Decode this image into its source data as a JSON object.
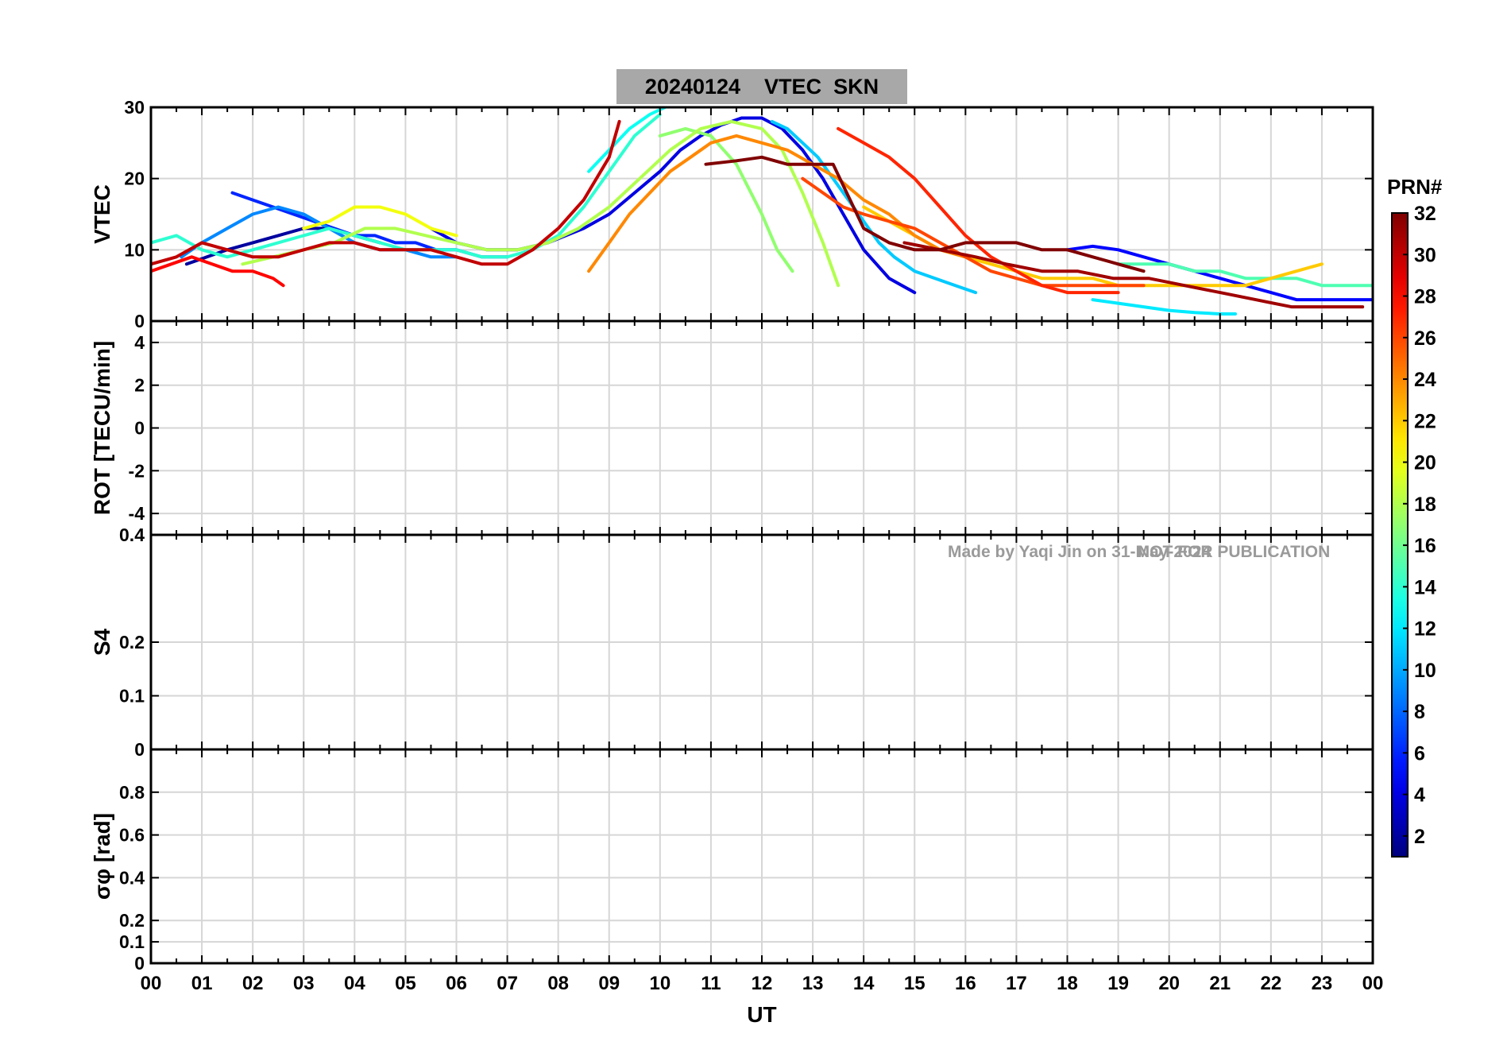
{
  "chart_data": {
    "type": "line",
    "title": "20240124    VTEC  SKN",
    "watermark_left": "Made by Yaqi Jin on 31-May-2024",
    "watermark_right": "NOT FOR PUBLICATION",
    "xlabel": "UT",
    "xlim": [
      0,
      24
    ],
    "xticks": [
      0,
      1,
      2,
      3,
      4,
      5,
      6,
      7,
      8,
      9,
      10,
      11,
      12,
      13,
      14,
      15,
      16,
      17,
      18,
      19,
      20,
      21,
      22,
      23,
      24
    ],
    "xticklabels": [
      "00",
      "01",
      "02",
      "03",
      "04",
      "05",
      "06",
      "07",
      "08",
      "09",
      "10",
      "11",
      "12",
      "13",
      "14",
      "15",
      "16",
      "17",
      "18",
      "19",
      "20",
      "21",
      "22",
      "23",
      "00"
    ],
    "colorbar": {
      "label": "PRN#",
      "clim": [
        1,
        32
      ],
      "ticks": [
        2,
        4,
        6,
        8,
        10,
        12,
        14,
        16,
        18,
        20,
        22,
        24,
        26,
        28,
        30,
        32
      ],
      "ticklabels": [
        "2",
        "4",
        "6",
        "8",
        "10",
        "12",
        "14",
        "16",
        "18",
        "20",
        "22",
        "24",
        "26",
        "28",
        "30",
        "32"
      ],
      "colormap": "jet"
    },
    "panels": [
      {
        "id": "vtec",
        "ylabel": "VTEC",
        "ylim": [
          0,
          30
        ],
        "yticks": [
          0,
          10,
          20,
          30
        ],
        "yticklabels": [
          "0",
          "10",
          "20",
          "30"
        ],
        "series": [
          {
            "prn": 2,
            "x": [
              0.7,
              1.1,
              1.5,
              2.0,
              2.5,
              3.0,
              3.5,
              4.0,
              4.5
            ],
            "y": [
              8,
              9,
              10,
              11,
              12,
              13,
              13,
              12,
              11
            ]
          },
          {
            "prn": 4,
            "x": [
              5.5,
              6.0,
              6.6,
              7.2,
              7.8,
              8.5,
              9.0,
              9.5,
              10.0,
              10.4,
              10.8,
              11.2,
              11.6,
              12.0,
              12.4,
              12.8,
              13.2,
              13.6,
              14.0,
              14.5,
              15.0
            ],
            "y": [
              13,
              11,
              10,
              10,
              11,
              13,
              15,
              18,
              21,
              24,
              26,
              27.5,
              28.5,
              28.5,
              27,
              24,
              20,
              15,
              10,
              6,
              4
            ]
          },
          {
            "prn": 6,
            "x": [
              1.6,
              2.0,
              2.4,
              2.8,
              3.2,
              3.6,
              4.0,
              4.4,
              4.8,
              5.2,
              5.6,
              6.0,
              6.5,
              7.0
            ],
            "y": [
              18,
              17,
              16,
              15,
              14,
              13,
              12,
              12,
              11,
              11,
              10,
              10,
              9,
              9
            ]
          },
          {
            "prn": 5,
            "x": [
              18.0,
              18.5,
              19.0,
              19.5,
              20.0,
              20.5,
              21.0,
              21.5,
              22.0,
              22.5,
              23.0,
              23.5,
              24.0
            ],
            "y": [
              10,
              10.5,
              10,
              9,
              8,
              7,
              6,
              5,
              4,
              3,
              3,
              3,
              3
            ]
          },
          {
            "prn": 9,
            "x": [
              0.6,
              1.0,
              1.5,
              2.0,
              2.5,
              3.0,
              3.5,
              4.0,
              4.5,
              5.0,
              5.5,
              6.0
            ],
            "y": [
              9,
              11,
              13,
              15,
              16,
              15,
              13,
              11,
              10,
              10,
              9,
              9
            ]
          },
          {
            "prn": 11,
            "x": [
              12.2,
              12.5,
              12.8,
              13.1,
              13.4,
              13.7,
              14.0,
              14.3,
              14.6,
              15.0,
              15.4,
              15.8,
              16.2
            ],
            "y": [
              28,
              27,
              25,
              23,
              20,
              17,
              14,
              11,
              9,
              7,
              6,
              5,
              4
            ]
          },
          {
            "prn": 12,
            "x": [
              18.5,
              19.0,
              19.5,
              20.0,
              20.5,
              21.0,
              21.3
            ],
            "y": [
              3,
              2.5,
              2,
              1.5,
              1.2,
              1,
              1
            ]
          },
          {
            "prn": 13,
            "x": [
              8.6,
              9.0,
              9.4,
              9.8,
              10.1
            ],
            "y": [
              21,
              24,
              27,
              29,
              30
            ]
          },
          {
            "prn": 14,
            "x": [
              0.0,
              0.5,
              1.0,
              1.5,
              2.0,
              2.5,
              3.0,
              3.5,
              4.0,
              4.5,
              5.0,
              5.5,
              6.0,
              6.5,
              7.0,
              7.5,
              8.0,
              8.5,
              9.0,
              9.5,
              10.0
            ],
            "y": [
              11,
              12,
              10,
              9,
              10,
              11,
              12,
              13,
              12,
              11,
              10,
              10,
              10,
              9,
              9,
              10,
              12,
              16,
              21,
              26,
              29
            ]
          },
          {
            "prn": 15,
            "x": [
              19.0,
              19.5,
              20.0,
              20.5,
              21.0,
              21.5,
              22.0,
              22.5,
              23.0,
              23.5,
              24.0
            ],
            "y": [
              8,
              8,
              8,
              7,
              7,
              6,
              6,
              6,
              5,
              5,
              5
            ]
          },
          {
            "prn": 17,
            "x": [
              10.0,
              10.5,
              11.0,
              11.5,
              12.0,
              12.3,
              12.6
            ],
            "y": [
              26,
              27,
              26,
              22,
              15,
              10,
              7
            ]
          },
          {
            "prn": 18,
            "x": [
              1.8,
              2.4,
              3.0,
              3.6,
              4.2,
              4.8,
              5.4,
              6.0,
              6.6,
              7.2,
              7.8,
              8.4,
              9.0,
              9.6,
              10.2,
              10.8,
              11.4,
              12.0,
              12.4,
              12.8,
              13.2,
              13.5
            ],
            "y": [
              8,
              9,
              10,
              11,
              13,
              13,
              12,
              11,
              10,
              10,
              11,
              13,
              16,
              20,
              24,
              27,
              28,
              27,
              24,
              18,
              11,
              5
            ]
          },
          {
            "prn": 20,
            "x": [
              3.0,
              3.5,
              4.0,
              4.5,
              5.0,
              5.5,
              6.0
            ],
            "y": [
              13,
              14,
              16,
              16,
              15,
              13,
              12
            ]
          },
          {
            "prn": 22,
            "x": [
              14.0,
              14.5,
              15.0,
              15.5,
              16.0,
              16.5,
              17.0,
              17.5,
              18.0,
              18.5,
              19.0,
              19.5,
              20.0,
              20.5,
              21.0,
              21.5,
              22.0,
              22.5,
              23.0
            ],
            "y": [
              16,
              14,
              12,
              10,
              9,
              8,
              7,
              6,
              6,
              6,
              5,
              5,
              5,
              5,
              5,
              5,
              6,
              7,
              8
            ]
          },
          {
            "prn": 24,
            "x": [
              8.6,
              9.0,
              9.4,
              9.8,
              10.2,
              10.6,
              11.0,
              11.5,
              12.0,
              12.5,
              13.0,
              13.5,
              14.0,
              14.5,
              15.0,
              15.5,
              16.0
            ],
            "y": [
              7,
              11,
              15,
              18,
              21,
              23,
              25,
              26,
              25,
              24,
              22,
              20,
              17,
              15,
              12,
              10,
              9
            ]
          },
          {
            "prn": 26,
            "x": [
              12.8,
              13.2,
              13.6,
              14.0,
              14.5,
              15.0,
              15.5,
              16.0,
              16.5,
              17.0,
              17.5,
              18.0,
              18.5,
              19.0,
              19.5
            ],
            "y": [
              20,
              18,
              16,
              15,
              14,
              13,
              11,
              9,
              7,
              6,
              5,
              5,
              5,
              5,
              5
            ]
          },
          {
            "prn": 28,
            "x": [
              0.0,
              0.4,
              0.8,
              1.2,
              1.6,
              2.0,
              2.4,
              2.6
            ],
            "y": [
              7,
              8,
              9,
              8,
              7,
              7,
              6,
              5
            ]
          },
          {
            "prn": 27,
            "x": [
              13.5,
              14.0,
              14.5,
              15.0,
              15.5,
              16.0,
              16.5,
              17.0,
              17.5,
              18.0,
              18.5,
              19.0
            ],
            "y": [
              27,
              25,
              23,
              20,
              16,
              12,
              9,
              7,
              5,
              4,
              4,
              4
            ]
          },
          {
            "prn": 30,
            "x": [
              0.0,
              0.5,
              1.0,
              1.5,
              2.0,
              2.5,
              3.0,
              3.5,
              4.0,
              4.5,
              5.0,
              5.5,
              6.0,
              6.5,
              7.0,
              7.5,
              8.0,
              8.5,
              9.0,
              9.2
            ],
            "y": [
              8,
              9,
              11,
              10,
              9,
              9,
              10,
              11,
              11,
              10,
              10,
              10,
              9,
              8,
              8,
              10,
              13,
              17,
              23,
              28
            ]
          },
          {
            "prn": 31,
            "x": [
              14.8,
              15.5,
              16.2,
              16.8,
              17.5,
              18.2,
              18.9,
              19.6,
              20.3,
              21.0,
              21.7,
              22.4,
              23.1,
              23.8
            ],
            "y": [
              11,
              10,
              9,
              8,
              7,
              7,
              6,
              6,
              5,
              4,
              3,
              2,
              2,
              2
            ]
          },
          {
            "prn": 32,
            "x": [
              10.9,
              11.5,
              12.0,
              12.5,
              13.0,
              13.4,
              14.0,
              14.5,
              15.0,
              15.5,
              16.0,
              16.5,
              17.0,
              17.5,
              18.0,
              18.5,
              19.0,
              19.5
            ],
            "y": [
              22,
              22.5,
              23,
              22,
              22,
              22,
              13,
              11,
              10,
              10,
              11,
              11,
              11,
              10,
              10,
              9,
              8,
              7
            ]
          }
        ]
      },
      {
        "id": "rot",
        "ylabel": "ROT [TECU/min]",
        "ylim": [
          -5,
          5
        ],
        "yticks": [
          -4,
          -2,
          0,
          2,
          4
        ],
        "yticklabels": [
          "-4",
          "-2",
          "0",
          "2",
          "4"
        ]
      },
      {
        "id": "s4",
        "ylabel": "S4",
        "ylim": [
          0,
          0.4
        ],
        "yticks": [
          0,
          0.1,
          0.2,
          0.4
        ],
        "yticklabels": [
          "0",
          "0.1",
          "0.2",
          "0.4"
        ]
      },
      {
        "id": "sigma",
        "ylabel": "σφ [rad]",
        "ylim": [
          0,
          1
        ],
        "yticks": [
          0,
          0.1,
          0.2,
          0.4,
          0.6,
          0.8
        ],
        "yticklabels": [
          "0",
          "0.1",
          "0.2",
          "0.4",
          "0.6",
          "0.8"
        ]
      }
    ]
  }
}
